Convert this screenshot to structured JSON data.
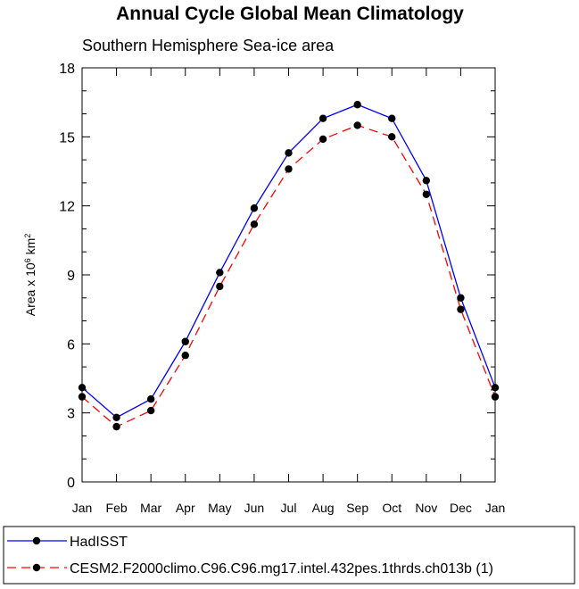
{
  "chart_data": {
    "type": "line",
    "title": "Annual Cycle Global Mean Climatology",
    "subtitle": "Southern Hemisphere Sea-ice area",
    "ylabel": {
      "base": "Area x 10",
      "exp1": "6",
      "mid": " km",
      "exp2": "2"
    },
    "xlabel": "",
    "categories": [
      "Jan",
      "Feb",
      "Mar",
      "Apr",
      "May",
      "Jun",
      "Jul",
      "Aug",
      "Sep",
      "Oct",
      "Nov",
      "Dec",
      "Jan"
    ],
    "ylim": [
      0,
      18
    ],
    "yticks": [
      "0",
      "3",
      "6",
      "9",
      "12",
      "15",
      "18"
    ],
    "series": [
      {
        "name": "HadISST",
        "color": "#0000ff",
        "dash": "solid",
        "values": [
          4.1,
          2.8,
          3.6,
          6.1,
          9.1,
          11.9,
          14.3,
          15.8,
          16.4,
          15.8,
          13.1,
          8.0,
          4.1
        ]
      },
      {
        "name": "CESM2.F2000climo.C96.C96.mg17.intel.432pes.1thrds.ch013b (1)",
        "color": "#ff0000",
        "dash": "dashed",
        "values": [
          3.7,
          2.4,
          3.1,
          5.5,
          8.5,
          11.2,
          13.6,
          14.9,
          15.5,
          15.0,
          12.5,
          7.5,
          3.7
        ]
      }
    ],
    "legend_position": "bottom"
  }
}
